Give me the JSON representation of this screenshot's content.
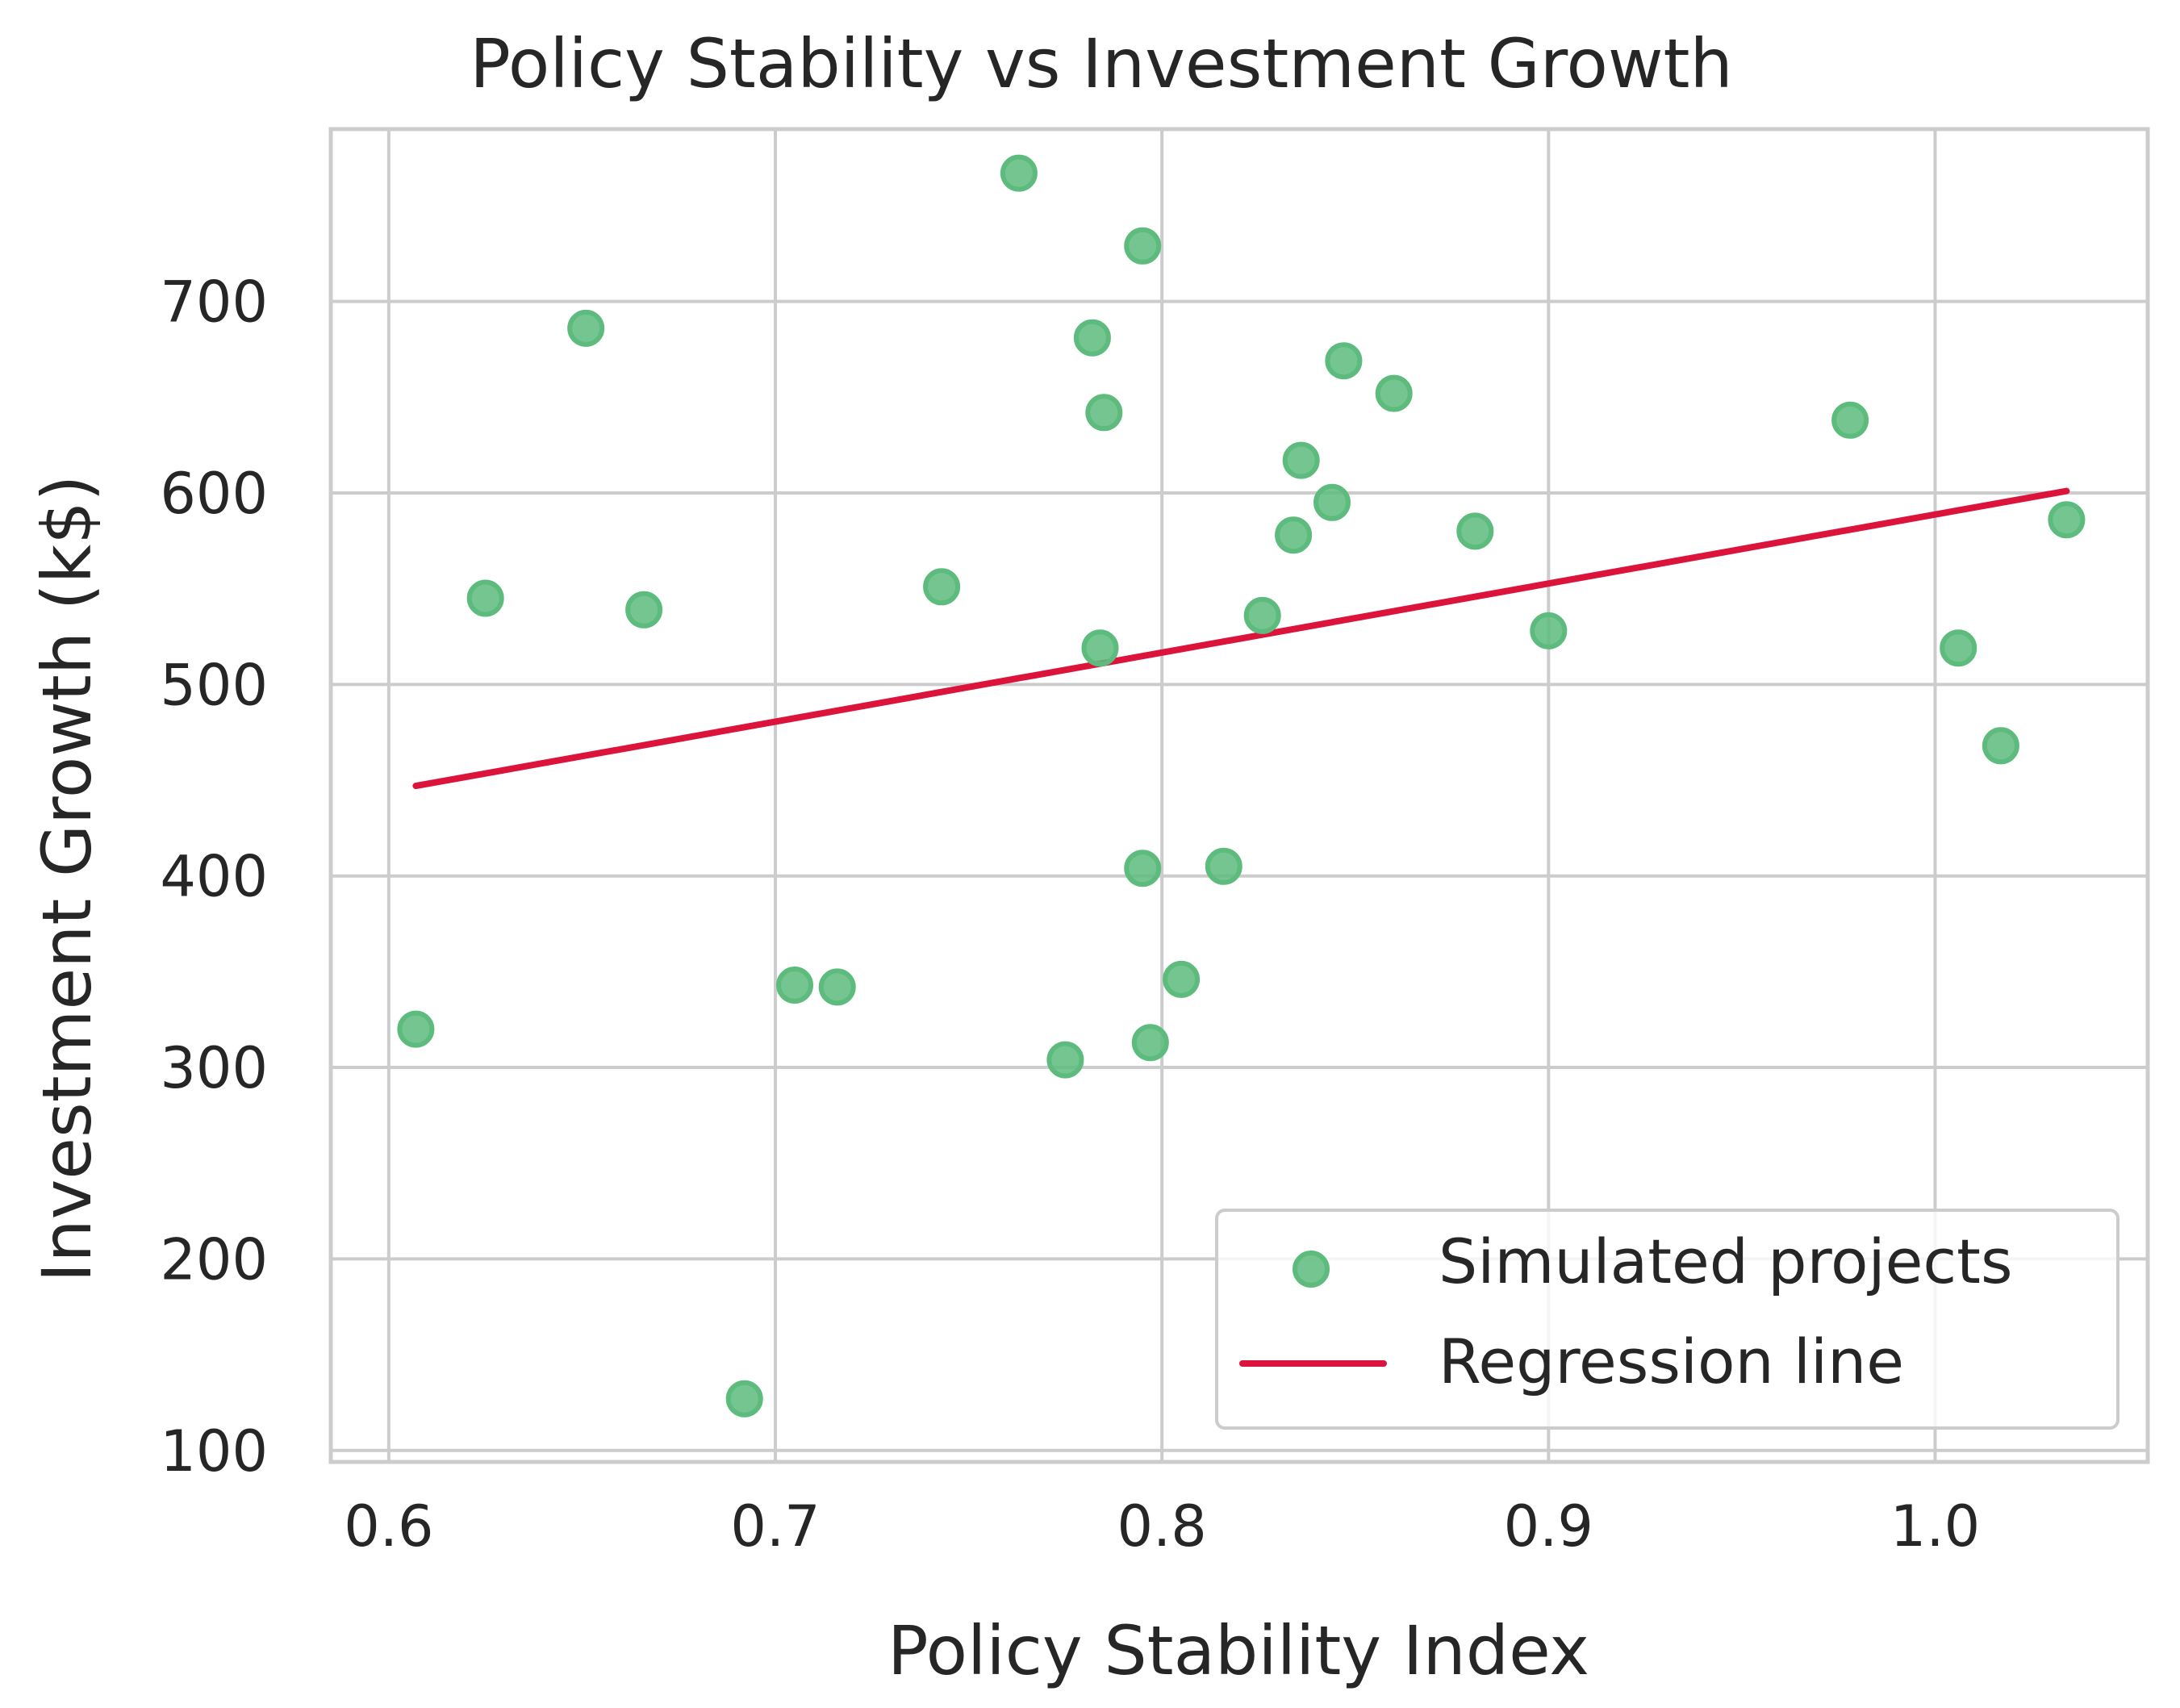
{
  "chart_data": {
    "type": "scatter",
    "title": "Policy Stability vs Investment Growth",
    "xlabel": "Policy Stability Index",
    "ylabel": "Investment Growth (k$)",
    "xlim": [
      0.585,
      1.055
    ],
    "ylim": [
      94,
      790
    ],
    "xticks": [
      0.6,
      0.7,
      0.8,
      0.9,
      1.0
    ],
    "xtick_labels": [
      "0.6",
      "0.7",
      "0.8",
      "0.9",
      "1.0"
    ],
    "yticks": [
      100,
      200,
      300,
      400,
      500,
      600,
      700
    ],
    "ytick_labels": [
      "100",
      "200",
      "300",
      "400",
      "500",
      "600",
      "700"
    ],
    "grid": true,
    "legend_position": "lower-right",
    "series": [
      {
        "name": "Simulated projects",
        "type": "scatter",
        "color": "#5dbb7e",
        "points": [
          {
            "x": 0.607,
            "y": 320
          },
          {
            "x": 0.625,
            "y": 545
          },
          {
            "x": 0.651,
            "y": 686
          },
          {
            "x": 0.666,
            "y": 539
          },
          {
            "x": 0.692,
            "y": 127
          },
          {
            "x": 0.705,
            "y": 343
          },
          {
            "x": 0.716,
            "y": 342
          },
          {
            "x": 0.743,
            "y": 551
          },
          {
            "x": 0.763,
            "y": 767
          },
          {
            "x": 0.775,
            "y": 304
          },
          {
            "x": 0.782,
            "y": 681
          },
          {
            "x": 0.784,
            "y": 519
          },
          {
            "x": 0.785,
            "y": 642
          },
          {
            "x": 0.795,
            "y": 729
          },
          {
            "x": 0.795,
            "y": 404
          },
          {
            "x": 0.797,
            "y": 313
          },
          {
            "x": 0.805,
            "y": 346
          },
          {
            "x": 0.816,
            "y": 405
          },
          {
            "x": 0.826,
            "y": 536
          },
          {
            "x": 0.834,
            "y": 578
          },
          {
            "x": 0.836,
            "y": 617
          },
          {
            "x": 0.844,
            "y": 595
          },
          {
            "x": 0.847,
            "y": 669
          },
          {
            "x": 0.86,
            "y": 652
          },
          {
            "x": 0.881,
            "y": 580
          },
          {
            "x": 0.9,
            "y": 528
          },
          {
            "x": 0.978,
            "y": 638
          },
          {
            "x": 1.006,
            "y": 519
          },
          {
            "x": 1.017,
            "y": 468
          },
          {
            "x": 1.034,
            "y": 586
          }
        ]
      },
      {
        "name": "Regression line",
        "type": "line",
        "color": "#dc143c",
        "points": [
          {
            "x": 0.607,
            "y": 447
          },
          {
            "x": 1.034,
            "y": 601
          }
        ]
      }
    ]
  }
}
